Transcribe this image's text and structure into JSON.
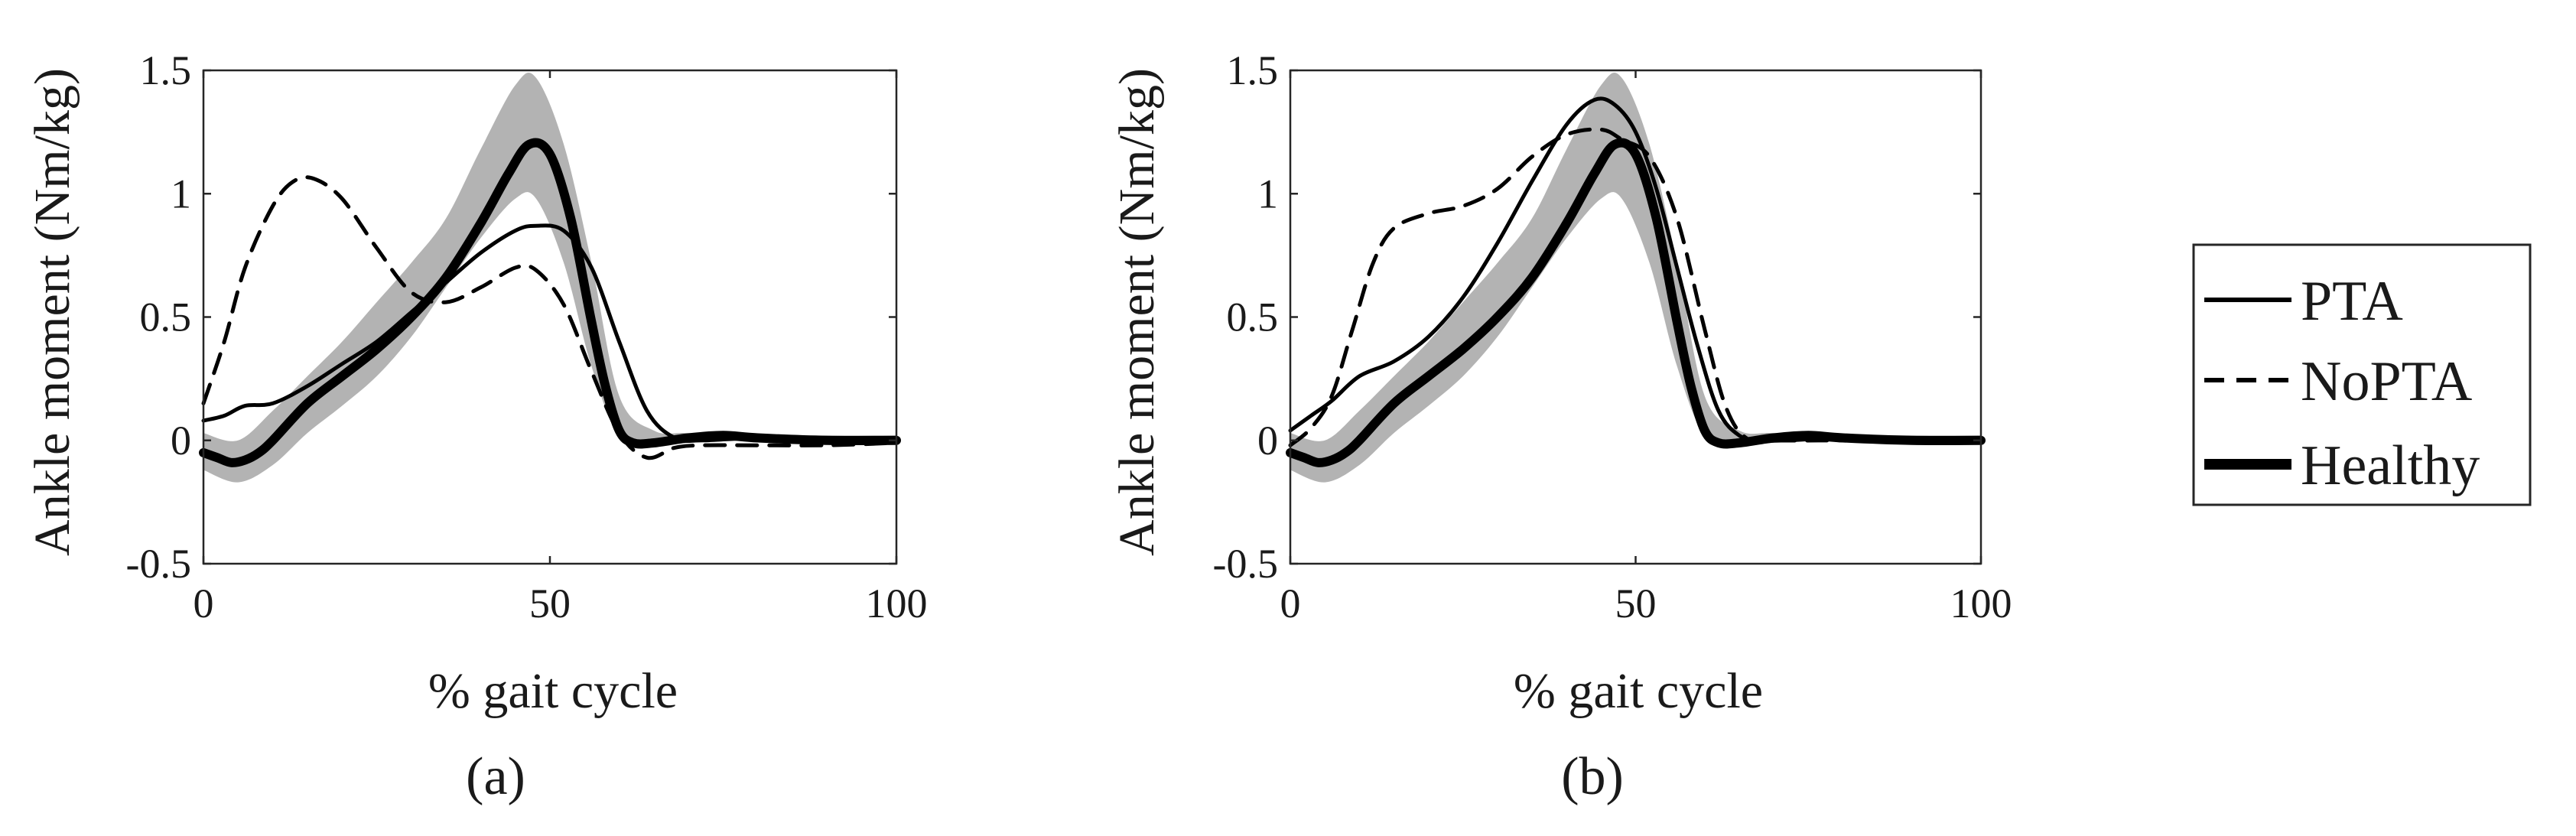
{
  "legend": {
    "entries": [
      {
        "label": "PTA",
        "style": "solid-thin"
      },
      {
        "label": "NoPTA",
        "style": "dashed"
      },
      {
        "label": "Healthy",
        "style": "solid-thick"
      }
    ]
  },
  "chart_data": [
    {
      "type": "line",
      "panel_label": "(a)",
      "xlabel": "% gait cycle",
      "ylabel": "Ankle moment (Nm/kg)",
      "xlim": [
        0,
        100
      ],
      "ylim": [
        -0.5,
        1.5
      ],
      "xticks": [
        0,
        50,
        100
      ],
      "yticks": [
        -0.5,
        0,
        0.5,
        1,
        1.5
      ],
      "xtick_labels": [
        "0",
        "50",
        "100"
      ],
      "ytick_labels": [
        "-0.5",
        "0",
        "0.5",
        "1",
        "1.5"
      ],
      "grid": false,
      "healthy_band": {
        "x": [
          0,
          5,
          10,
          15,
          20,
          25,
          30,
          35,
          40,
          45,
          48,
          52,
          56,
          60,
          65,
          70,
          80,
          90,
          100
        ],
        "lower": [
          -0.12,
          -0.17,
          -0.1,
          0.03,
          0.14,
          0.26,
          0.42,
          0.62,
          0.82,
          0.98,
          0.98,
          0.72,
          0.3,
          0.02,
          -0.02,
          -0.01,
          0.0,
          0.0,
          0.0
        ],
        "upper": [
          0.03,
          0.0,
          0.12,
          0.26,
          0.4,
          0.56,
          0.72,
          0.9,
          1.18,
          1.44,
          1.47,
          1.2,
          0.72,
          0.18,
          0.04,
          0.03,
          0.02,
          0.02,
          0.02
        ]
      },
      "series": [
        {
          "name": "PTA",
          "x": [
            0,
            3,
            6,
            10,
            15,
            20,
            25,
            30,
            35,
            40,
            45,
            48,
            52,
            56,
            60,
            64,
            68,
            72,
            80,
            90,
            100
          ],
          "values": [
            0.08,
            0.1,
            0.14,
            0.15,
            0.22,
            0.31,
            0.4,
            0.52,
            0.64,
            0.76,
            0.85,
            0.87,
            0.85,
            0.7,
            0.4,
            0.12,
            0.01,
            0.0,
            0.01,
            0.0,
            0.0
          ]
        },
        {
          "name": "NoPTA",
          "x": [
            0,
            3,
            6,
            10,
            13,
            16,
            20,
            25,
            30,
            35,
            40,
            45,
            48,
            52,
            56,
            60,
            64,
            68,
            72,
            80,
            90,
            100
          ],
          "values": [
            0.15,
            0.4,
            0.7,
            0.95,
            1.05,
            1.06,
            0.98,
            0.78,
            0.6,
            0.56,
            0.62,
            0.7,
            0.69,
            0.55,
            0.28,
            0.03,
            -0.07,
            -0.03,
            -0.02,
            -0.02,
            -0.02,
            -0.01
          ]
        },
        {
          "name": "Healthy",
          "x": [
            0,
            2,
            4,
            6,
            8,
            10,
            15,
            20,
            25,
            30,
            35,
            40,
            44,
            47,
            50,
            53,
            56,
            58,
            60,
            62,
            65,
            70,
            75,
            80,
            90,
            100
          ],
          "values": [
            -0.05,
            -0.07,
            -0.09,
            -0.08,
            -0.05,
            0.0,
            0.15,
            0.26,
            0.37,
            0.5,
            0.66,
            0.88,
            1.08,
            1.2,
            1.16,
            0.9,
            0.48,
            0.22,
            0.04,
            -0.01,
            -0.01,
            0.01,
            0.02,
            0.01,
            0.0,
            0.0
          ]
        }
      ]
    },
    {
      "type": "line",
      "panel_label": "(b)",
      "xlabel": "% gait cycle",
      "ylabel": "Ankle moment (Nm/kg)",
      "xlim": [
        0,
        100
      ],
      "ylim": [
        -0.5,
        1.5
      ],
      "xticks": [
        0,
        50,
        100
      ],
      "yticks": [
        -0.5,
        0,
        0.5,
        1,
        1.5
      ],
      "xtick_labels": [
        "0",
        "50",
        "100"
      ],
      "ytick_labels": [
        "-0.5",
        "0",
        "0.5",
        "1",
        "1.5"
      ],
      "grid": false,
      "healthy_band": {
        "x": [
          0,
          5,
          10,
          15,
          20,
          25,
          30,
          35,
          40,
          45,
          48,
          52,
          56,
          60,
          65,
          70,
          80,
          90,
          100
        ],
        "lower": [
          -0.12,
          -0.17,
          -0.1,
          0.03,
          0.14,
          0.26,
          0.42,
          0.62,
          0.82,
          0.98,
          0.98,
          0.72,
          0.3,
          0.02,
          -0.02,
          -0.01,
          0.0,
          0.0,
          0.0
        ],
        "upper": [
          0.03,
          0.0,
          0.12,
          0.26,
          0.4,
          0.56,
          0.72,
          0.9,
          1.18,
          1.44,
          1.47,
          1.2,
          0.72,
          0.18,
          0.04,
          0.03,
          0.02,
          0.02,
          0.02
        ]
      },
      "series": [
        {
          "name": "PTA",
          "x": [
            0,
            3,
            6,
            10,
            15,
            20,
            25,
            30,
            35,
            40,
            44,
            47,
            50,
            53,
            56,
            59,
            62,
            65,
            68,
            72,
            80,
            90,
            100
          ],
          "values": [
            0.04,
            0.1,
            0.16,
            0.26,
            0.32,
            0.42,
            0.58,
            0.8,
            1.05,
            1.28,
            1.38,
            1.36,
            1.25,
            1.02,
            0.7,
            0.38,
            0.12,
            0.02,
            0.0,
            0.0,
            0.01,
            0.0,
            0.0
          ]
        },
        {
          "name": "NoPTA",
          "x": [
            0,
            3,
            6,
            9,
            12,
            15,
            20,
            25,
            30,
            35,
            40,
            45,
            48,
            52,
            56,
            60,
            63,
            66,
            70,
            80,
            90,
            100
          ],
          "values": [
            -0.02,
            0.05,
            0.18,
            0.45,
            0.72,
            0.86,
            0.92,
            0.95,
            1.02,
            1.15,
            1.24,
            1.26,
            1.22,
            1.15,
            0.9,
            0.45,
            0.14,
            0.01,
            0.0,
            0.0,
            0.0,
            0.0
          ]
        },
        {
          "name": "Healthy",
          "x": [
            0,
            2,
            4,
            6,
            8,
            10,
            15,
            20,
            25,
            30,
            35,
            40,
            44,
            47,
            50,
            53,
            56,
            58,
            60,
            62,
            65,
            70,
            75,
            80,
            90,
            100
          ],
          "values": [
            -0.05,
            -0.07,
            -0.09,
            -0.08,
            -0.05,
            0.0,
            0.15,
            0.26,
            0.37,
            0.5,
            0.66,
            0.88,
            1.08,
            1.2,
            1.16,
            0.9,
            0.48,
            0.22,
            0.04,
            -0.01,
            -0.01,
            0.01,
            0.02,
            0.01,
            0.0,
            0.0
          ]
        }
      ]
    }
  ]
}
